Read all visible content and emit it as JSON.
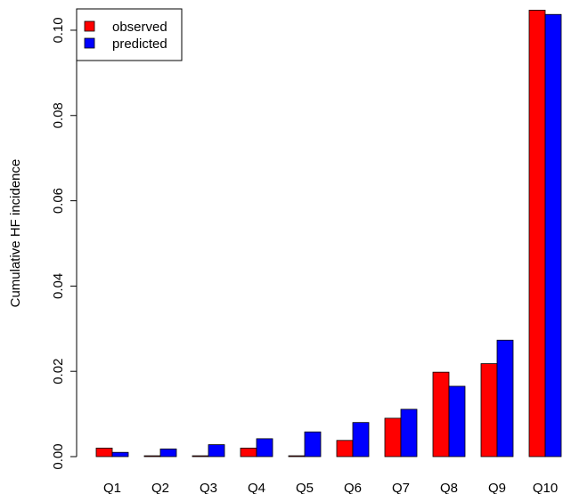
{
  "chart_data": {
    "type": "bar",
    "title": "",
    "xlabel": "",
    "ylabel": "Cumulative HF incidence",
    "categories": [
      "Q1",
      "Q2",
      "Q3",
      "Q4",
      "Q5",
      "Q6",
      "Q7",
      "Q8",
      "Q9",
      "Q10"
    ],
    "series": [
      {
        "name": "observed",
        "color": "#ff0000",
        "values": [
          0.002,
          0.0002,
          0.0002,
          0.002,
          0.0002,
          0.0038,
          0.009,
          0.0198,
          0.0218,
          0.1047
        ]
      },
      {
        "name": "predicted",
        "color": "#0000ff",
        "values": [
          0.001,
          0.0018,
          0.0028,
          0.0042,
          0.0058,
          0.008,
          0.0111,
          0.0165,
          0.0273,
          0.1037
        ]
      }
    ],
    "ylim": [
      0,
      0.105
    ],
    "yticks": [
      0.0,
      0.02,
      0.04,
      0.06,
      0.08,
      0.1
    ],
    "ytick_labels": [
      "0.00",
      "0.02",
      "0.04",
      "0.06",
      "0.08",
      "0.10"
    ],
    "grid": false,
    "legend_position": "top-left"
  }
}
